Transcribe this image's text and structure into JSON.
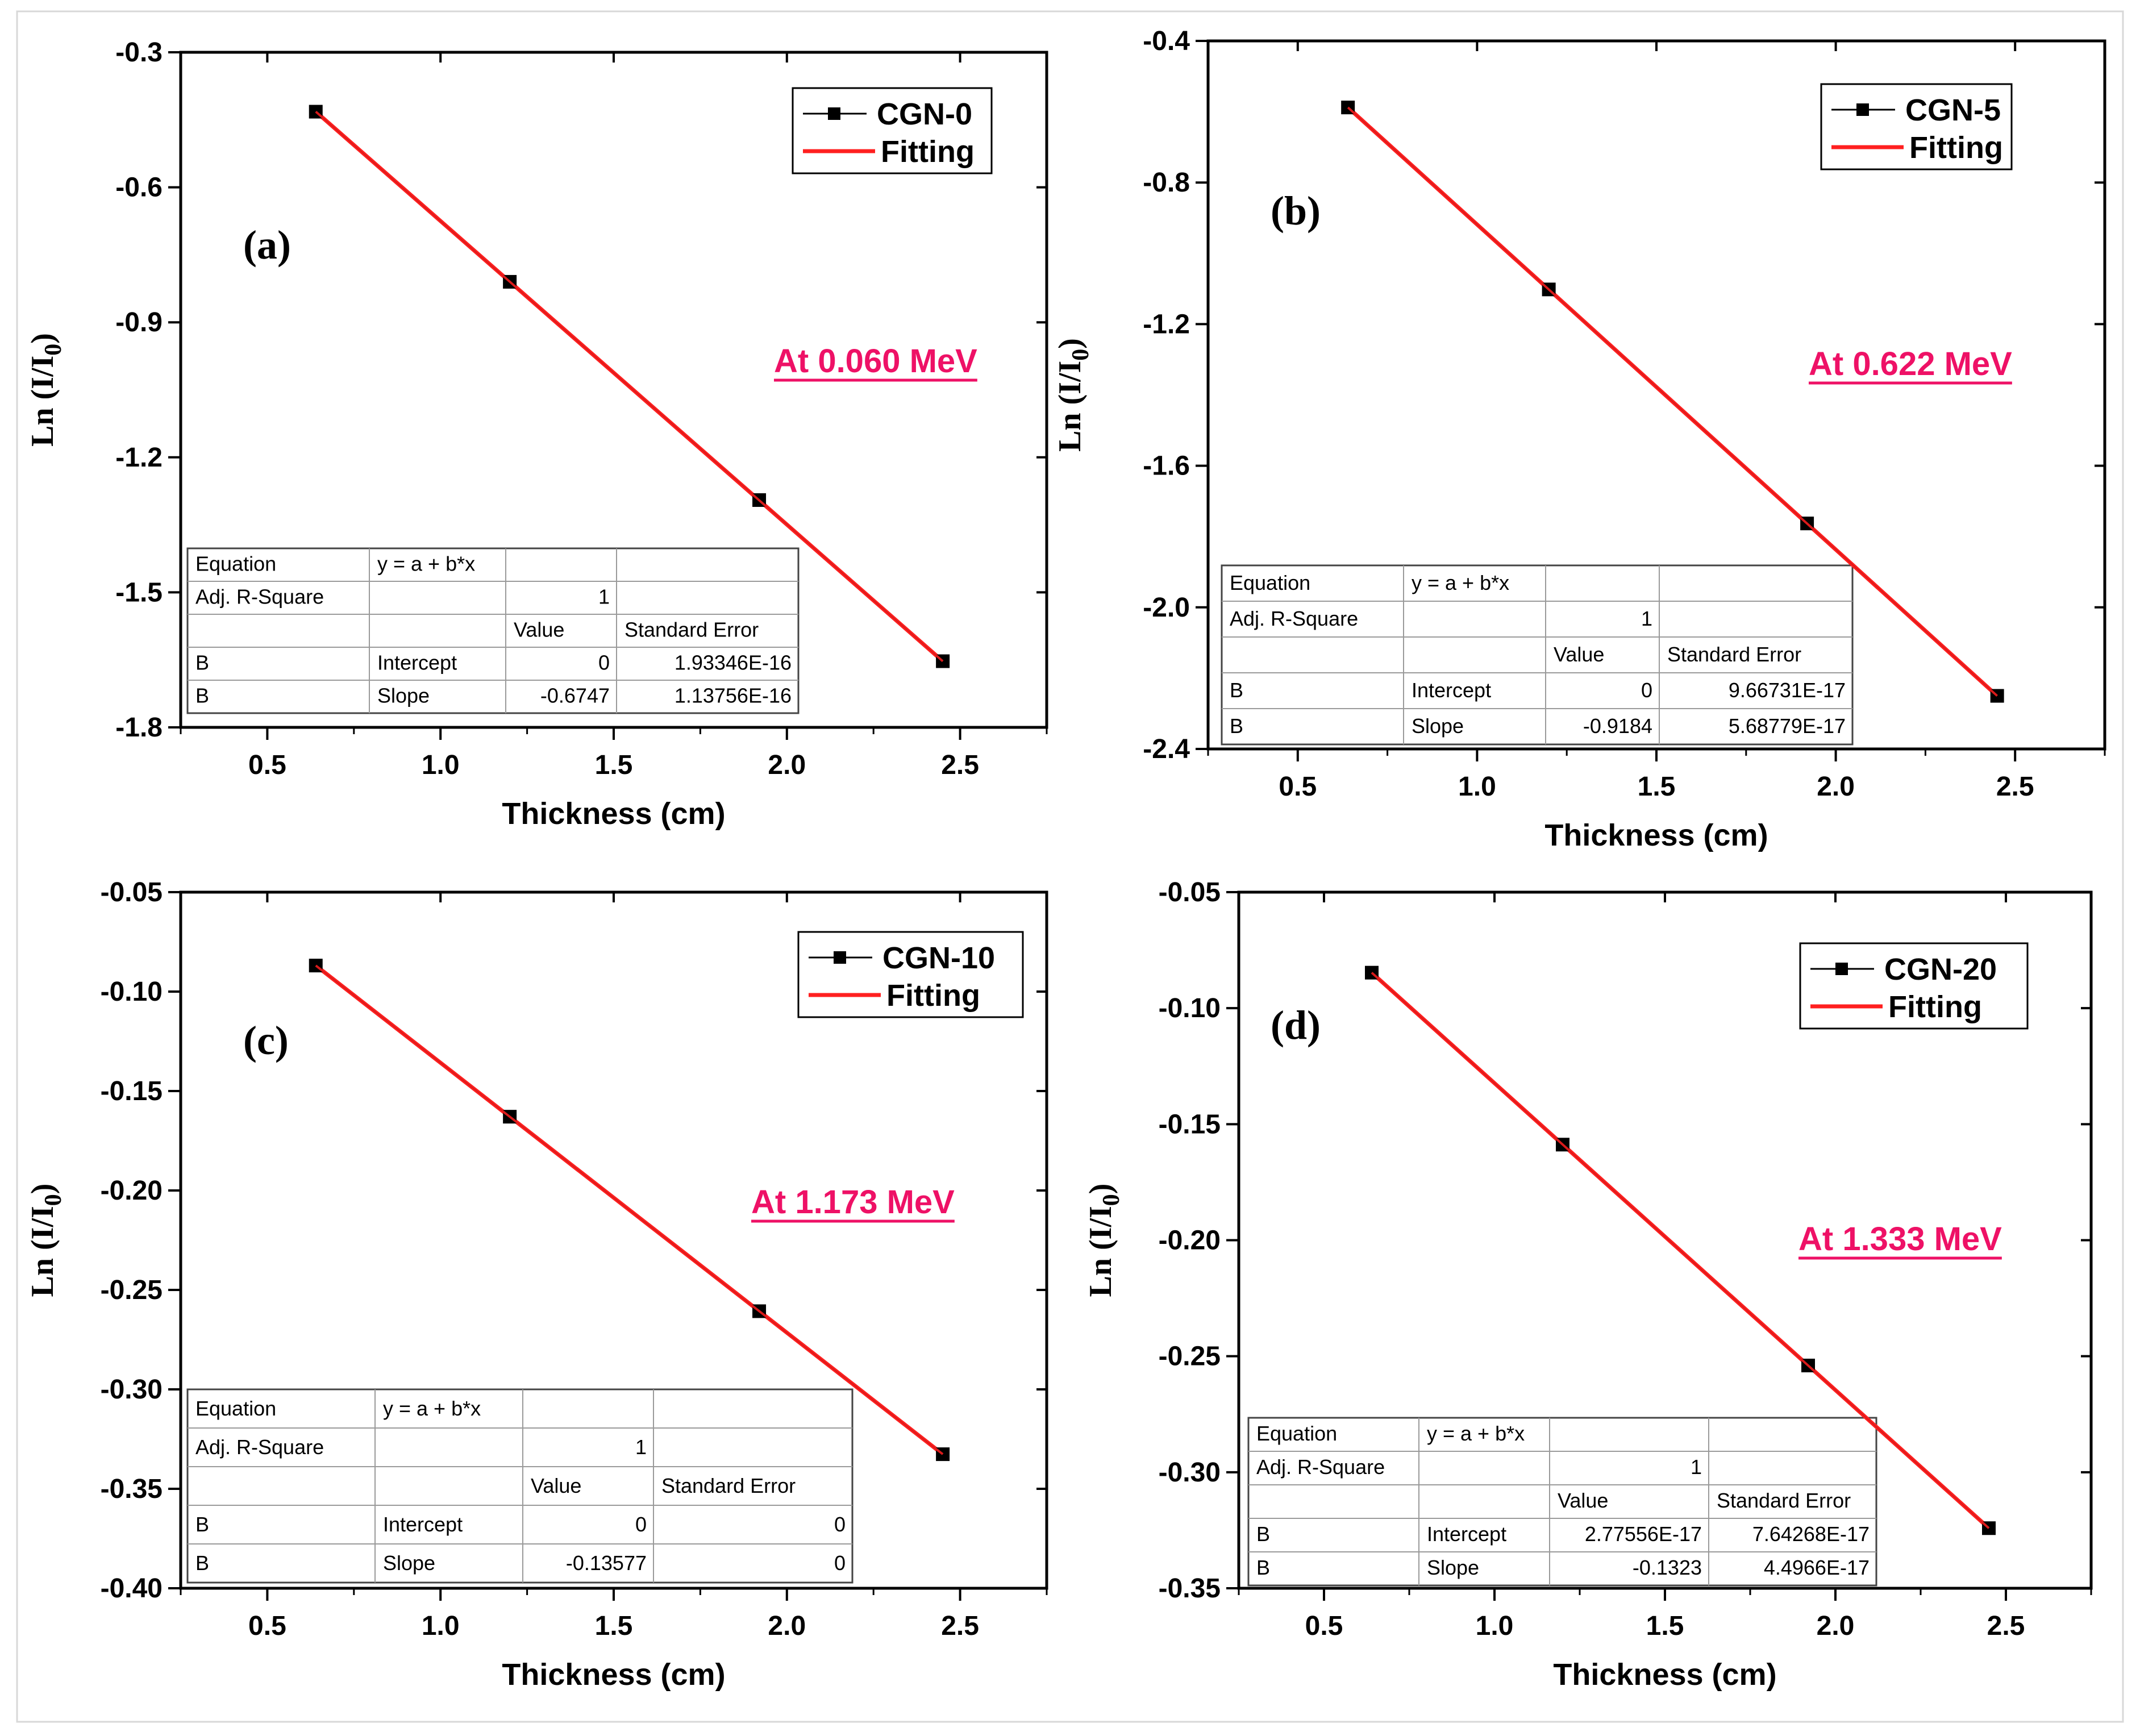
{
  "chart_data": [
    {
      "type": "scatter",
      "panel_label": "(a)",
      "energy_label": "At 0.060 MeV",
      "xlabel": "Thickness (cm)",
      "ylabel_main": "Ln (I/I",
      "ylabel_sub": "0",
      "ylabel_close": ")",
      "xlim": [
        0.25,
        2.75
      ],
      "ylim": [
        -1.8,
        -0.3
      ],
      "xticks": [
        0.5,
        1.0,
        1.5,
        2.0,
        2.5
      ],
      "xtick_labels": [
        "0.5",
        "1.0",
        "1.5",
        "2.0",
        "2.5"
      ],
      "yticks": [
        -0.3,
        -0.6,
        -0.9,
        -1.2,
        -1.5,
        -1.8
      ],
      "ytick_labels": [
        "-0.3",
        "-0.6",
        "-0.9",
        "-1.2",
        "-1.5",
        "-1.8"
      ],
      "series": [
        {
          "name": "CGN-0",
          "style": "line-square",
          "color": "#000000",
          "x": [
            0.64,
            1.2,
            1.92,
            2.45
          ],
          "y": [
            -0.432,
            -0.81,
            -1.295,
            -1.653
          ]
        },
        {
          "name": "Fitting",
          "style": "line",
          "color": "#ff2020",
          "x": [
            0.64,
            2.45
          ],
          "y": [
            -0.432,
            -1.653
          ]
        }
      ],
      "fit_table": {
        "rows": [
          [
            "Equation",
            "y = a + b*x",
            "",
            ""
          ],
          [
            "Adj. R-Square",
            "",
            "1",
            ""
          ],
          [
            "",
            "",
            "Value",
            "Standard Error"
          ],
          [
            "B",
            "Intercept",
            "0",
            "1.93346E-16"
          ],
          [
            "B",
            "Slope",
            "-0.6747",
            "1.13756E-16"
          ]
        ]
      }
    },
    {
      "type": "scatter",
      "panel_label": "(b)",
      "energy_label": "At 0.622 MeV",
      "xlabel": "Thickness (cm)",
      "ylabel_main": "Ln (I/I",
      "ylabel_sub": "0",
      "ylabel_close": ")",
      "xlim": [
        0.25,
        2.75
      ],
      "ylim": [
        -2.4,
        -0.4
      ],
      "xticks": [
        0.5,
        1.0,
        1.5,
        2.0,
        2.5
      ],
      "xtick_labels": [
        "0.5",
        "1.0",
        "1.5",
        "2.0",
        "2.5"
      ],
      "yticks": [
        -0.4,
        -0.8,
        -1.2,
        -1.6,
        -2.0,
        -2.4
      ],
      "ytick_labels": [
        "-0.4",
        "-0.8",
        "-1.2",
        "-1.6",
        "-2.0",
        "-2.4"
      ],
      "series": [
        {
          "name": "CGN-5",
          "style": "line-square",
          "color": "#000000",
          "x": [
            0.64,
            1.2,
            1.92,
            2.45
          ],
          "y": [
            -0.588,
            -1.102,
            -1.763,
            -2.25
          ]
        },
        {
          "name": "Fitting",
          "style": "line",
          "color": "#ff2020",
          "x": [
            0.64,
            2.45
          ],
          "y": [
            -0.588,
            -2.25
          ]
        }
      ],
      "fit_table": {
        "rows": [
          [
            "Equation",
            "y = a + b*x",
            "",
            ""
          ],
          [
            "Adj. R-Square",
            "",
            "1",
            ""
          ],
          [
            "",
            "",
            "Value",
            "Standard Error"
          ],
          [
            "B",
            "Intercept",
            "0",
            "9.66731E-17"
          ],
          [
            "B",
            "Slope",
            "-0.9184",
            "5.68779E-17"
          ]
        ]
      }
    },
    {
      "type": "scatter",
      "panel_label": "(c)",
      "energy_label": "At 1.173 MeV",
      "xlabel": "Thickness (cm)",
      "ylabel_main": "Ln (I/I",
      "ylabel_sub": "0",
      "ylabel_close": ")",
      "xlim": [
        0.25,
        2.75
      ],
      "ylim": [
        -0.4,
        -0.05
      ],
      "xticks": [
        0.5,
        1.0,
        1.5,
        2.0,
        2.5
      ],
      "xtick_labels": [
        "0.5",
        "1.0",
        "1.5",
        "2.0",
        "2.5"
      ],
      "yticks": [
        -0.05,
        -0.1,
        -0.15,
        -0.2,
        -0.25,
        -0.3,
        -0.35,
        -0.4
      ],
      "ytick_labels": [
        "-0.05",
        "-0.10",
        "-0.15",
        "-0.20",
        "-0.25",
        "-0.30",
        "-0.35",
        "-0.40"
      ],
      "series": [
        {
          "name": "CGN-10",
          "style": "line-square",
          "color": "#000000",
          "x": [
            0.64,
            1.2,
            1.92,
            2.45
          ],
          "y": [
            -0.0869,
            -0.1629,
            -0.2607,
            -0.3326
          ]
        },
        {
          "name": "Fitting",
          "style": "line",
          "color": "#ff2020",
          "x": [
            0.64,
            2.45
          ],
          "y": [
            -0.0869,
            -0.3326
          ]
        }
      ],
      "fit_table": {
        "rows": [
          [
            "Equation",
            "y = a + b*x",
            "",
            ""
          ],
          [
            "Adj. R-Square",
            "",
            "1",
            ""
          ],
          [
            "",
            "",
            "Value",
            "Standard Error"
          ],
          [
            "B",
            "Intercept",
            "0",
            "0"
          ],
          [
            "B",
            "Slope",
            "-0.13577",
            "0"
          ]
        ]
      }
    },
    {
      "type": "scatter",
      "panel_label": "(d)",
      "energy_label": "At 1.333 MeV",
      "xlabel": "Thickness (cm)",
      "ylabel_main": "Ln (I/I",
      "ylabel_sub": "0",
      "ylabel_close": ")",
      "xlim": [
        0.25,
        2.75
      ],
      "ylim": [
        -0.35,
        -0.05
      ],
      "xticks": [
        0.5,
        1.0,
        1.5,
        2.0,
        2.5
      ],
      "xtick_labels": [
        "0.5",
        "1.0",
        "1.5",
        "2.0",
        "2.5"
      ],
      "yticks": [
        -0.05,
        -0.1,
        -0.15,
        -0.2,
        -0.25,
        -0.3,
        -0.35
      ],
      "ytick_labels": [
        "-0.05",
        "-0.10",
        "-0.15",
        "-0.20",
        "-0.25",
        "-0.30",
        "-0.35"
      ],
      "series": [
        {
          "name": "CGN-20",
          "style": "line-square",
          "color": "#000000",
          "x": [
            0.64,
            1.2,
            1.92,
            2.45
          ],
          "y": [
            -0.0847,
            -0.1588,
            -0.254,
            -0.3241
          ]
        },
        {
          "name": "Fitting",
          "style": "line",
          "color": "#ff2020",
          "x": [
            0.64,
            2.45
          ],
          "y": [
            -0.0847,
            -0.3241
          ]
        }
      ],
      "fit_table": {
        "rows": [
          [
            "Equation",
            "y = a + b*x",
            "",
            ""
          ],
          [
            "Adj. R-Square",
            "",
            "1",
            ""
          ],
          [
            "",
            "",
            "Value",
            "Standard Error"
          ],
          [
            "B",
            "Intercept",
            "2.77556E-17",
            "7.64268E-17"
          ],
          [
            "B",
            "Slope",
            "-0.1323",
            "4.4966E-17"
          ]
        ]
      }
    }
  ]
}
